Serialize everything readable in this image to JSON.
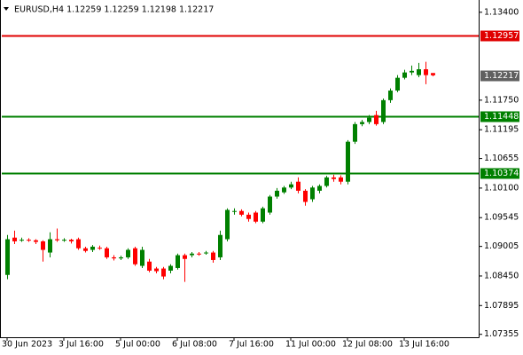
{
  "chart_data": {
    "type": "candlestick",
    "title": "EURUSD,H4  1.12259 1.12259 1.12198 1.12217",
    "categories": [
      "30 Jun 2023",
      null,
      null,
      null,
      null,
      null,
      null,
      null,
      "3 Jul 16:00",
      null,
      null,
      null,
      null,
      null,
      null,
      null,
      "5 Jul 00:00",
      null,
      null,
      null,
      null,
      null,
      null,
      null,
      "6 Jul 08:00",
      null,
      null,
      null,
      null,
      null,
      null,
      null,
      "7 Jul 16:00",
      null,
      null,
      null,
      null,
      null,
      null,
      null,
      "11 Jul 00:00",
      null,
      null,
      null,
      null,
      null,
      null,
      null,
      "12 Jul 08:00",
      null,
      null,
      null,
      null,
      null,
      null,
      null,
      "13 Jul 16:00",
      null,
      null,
      null,
      null
    ],
    "open": [
      1.0847,
      1.0917,
      1.0912,
      1.0913,
      1.0912,
      1.091,
      1.0889,
      1.0914,
      1.0912,
      1.0913,
      1.0914,
      1.0897,
      1.0894,
      1.0898,
      1.0897,
      1.088,
      1.0878,
      1.088,
      1.0897,
      1.0864,
      1.0872,
      1.0859,
      1.0859,
      1.0855,
      1.086,
      1.0884,
      1.0884,
      1.0887,
      1.0888,
      1.0889,
      1.088,
      1.0914,
      1.0966,
      1.0967,
      1.096,
      1.0964,
      1.0947,
      1.0964,
      1.0994,
      1.1002,
      1.1011,
      1.1022,
      1.1005,
      1.0989,
      1.1005,
      1.1014,
      1.103,
      1.103,
      1.1022,
      1.1097,
      1.113,
      1.1134,
      1.1147,
      1.1134,
      1.1175,
      1.1193,
      1.1217,
      1.1227,
      1.1222,
      1.1233,
      1.12259
    ],
    "high": [
      1.0922,
      1.093,
      1.0917,
      1.0916,
      1.0914,
      1.0912,
      1.0927,
      1.0934,
      1.0916,
      1.0915,
      1.0917,
      1.09,
      1.0903,
      1.0902,
      1.09,
      1.0884,
      1.0883,
      1.0897,
      1.09,
      1.09,
      1.0877,
      1.0862,
      1.0862,
      1.0867,
      1.0887,
      1.0887,
      1.089,
      1.089,
      1.0892,
      1.0892,
      1.093,
      1.0972,
      1.0972,
      1.097,
      1.0964,
      1.0967,
      1.0975,
      1.0997,
      1.101,
      1.1014,
      1.1022,
      1.103,
      1.1008,
      1.1014,
      1.1017,
      1.1033,
      1.1035,
      1.1034,
      1.11,
      1.1134,
      1.1138,
      1.1147,
      1.1155,
      1.1178,
      1.1197,
      1.1222,
      1.1232,
      1.124,
      1.1245,
      1.1247,
      1.12259
    ],
    "low": [
      1.0839,
      1.0905,
      1.0909,
      1.0909,
      1.0905,
      1.0872,
      1.088,
      1.0909,
      1.0909,
      1.0906,
      1.0894,
      1.0889,
      1.089,
      1.0894,
      1.0877,
      1.0874,
      1.0875,
      1.0877,
      1.0864,
      1.086,
      1.0852,
      1.085,
      1.0839,
      1.085,
      1.0857,
      1.0834,
      1.088,
      1.0883,
      1.0885,
      1.087,
      1.0875,
      1.091,
      1.096,
      1.0957,
      1.0947,
      1.0944,
      1.0944,
      1.096,
      1.099,
      1.0999,
      1.1008,
      1.1,
      1.0977,
      1.0984,
      1.1,
      1.1011,
      1.1022,
      1.1017,
      1.1017,
      1.1093,
      1.1126,
      1.113,
      1.1127,
      1.113,
      1.117,
      1.119,
      1.1214,
      1.1222,
      1.1218,
      1.1205,
      1.12198
    ],
    "close": [
      1.0914,
      1.091,
      1.0913,
      1.0912,
      1.0909,
      1.0894,
      1.0914,
      1.0912,
      1.0913,
      1.091,
      1.0897,
      1.0892,
      1.09,
      1.0897,
      1.088,
      1.0878,
      1.088,
      1.0894,
      1.0867,
      1.0894,
      1.0855,
      1.0854,
      1.0844,
      1.0864,
      1.0884,
      1.0877,
      1.0887,
      1.0886,
      1.0889,
      1.0875,
      1.0922,
      1.0969,
      1.0967,
      1.096,
      1.0952,
      1.0947,
      1.0972,
      1.0994,
      1.1005,
      1.1011,
      1.1017,
      1.1005,
      1.0984,
      1.1011,
      1.1014,
      1.103,
      1.1027,
      1.1022,
      1.1097,
      1.113,
      1.1134,
      1.1142,
      1.113,
      1.1175,
      1.1193,
      1.1217,
      1.1227,
      1.123,
      1.1233,
      1.1222,
      1.12217
    ],
    "up_color": "#008000",
    "down_color": "#ff0000",
    "ylim": [
      1.073,
      1.1363
    ],
    "yticks": [
      {
        "value": 1.134,
        "label": "1.13400"
      },
      {
        "value": 1.1175,
        "label": "1.11750"
      },
      {
        "value": 1.11195,
        "label": "1.11195"
      },
      {
        "value": 1.10655,
        "label": "1.10655"
      },
      {
        "value": 1.101,
        "label": "1.10100"
      },
      {
        "value": 1.09545,
        "label": "1.09545"
      },
      {
        "value": 1.09005,
        "label": "1.09005"
      },
      {
        "value": 1.0845,
        "label": "1.08450"
      },
      {
        "value": 1.07895,
        "label": "1.07895"
      },
      {
        "value": 1.07355,
        "label": "1.07355"
      }
    ],
    "levels": [
      {
        "value": 1.12957,
        "color": "#e00000"
      },
      {
        "value": 1.11448,
        "color": "#008000"
      },
      {
        "value": 1.10374,
        "color": "#008000"
      }
    ],
    "last_price_color": "#606060"
  }
}
